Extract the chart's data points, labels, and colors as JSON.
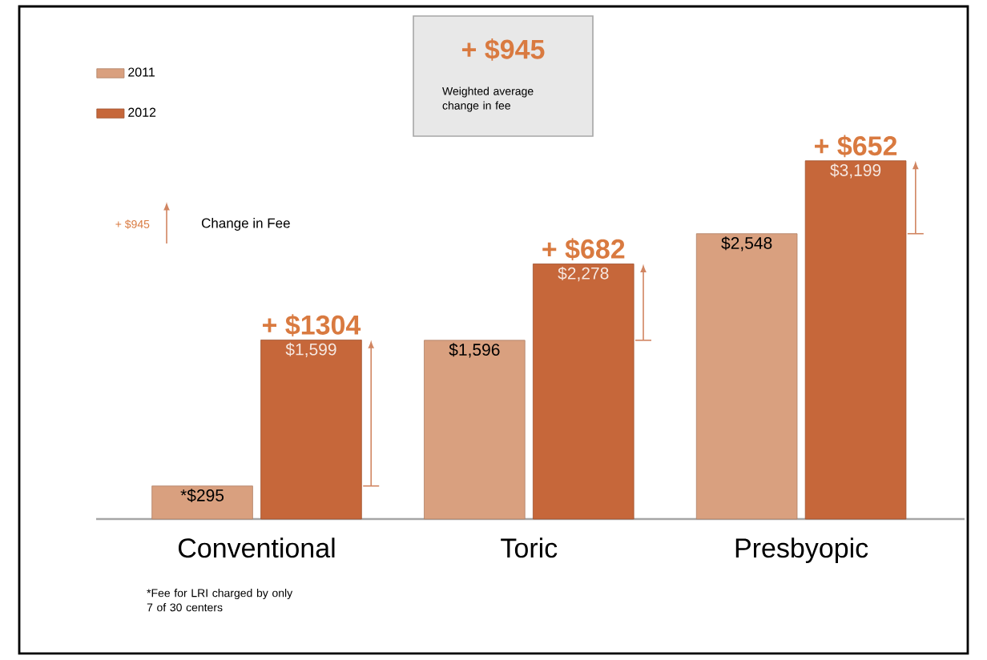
{
  "chart_data": {
    "type": "bar",
    "categories": [
      "Conventional",
      "Toric",
      "Presbyopic"
    ],
    "series": [
      {
        "name": "2011",
        "color": "#d9a07f",
        "values": [
          295,
          1596,
          2548
        ],
        "value_labels": [
          "*$295",
          "$1,596",
          "$2,548"
        ]
      },
      {
        "name": "2012",
        "color": "#c6673a",
        "values": [
          1599,
          2278,
          3199
        ],
        "value_labels": [
          "$1,599",
          "$2,278",
          "$3,199"
        ]
      }
    ],
    "annotations": [
      {
        "text": "+ $1304",
        "x": "Conventional",
        "y": 1599
      },
      {
        "text": "+ $682",
        "x": "Toric",
        "y": 2278
      },
      {
        "text": "+ $652",
        "x": "Presbyopic",
        "y": 3199
      },
      "+ $945",
      "Weighted average change in fee",
      "+ $945",
      "Change in Fee",
      "*Fee for LRI charged by only 7 of 30 centers"
    ],
    "legend": "top left"
  }
}
